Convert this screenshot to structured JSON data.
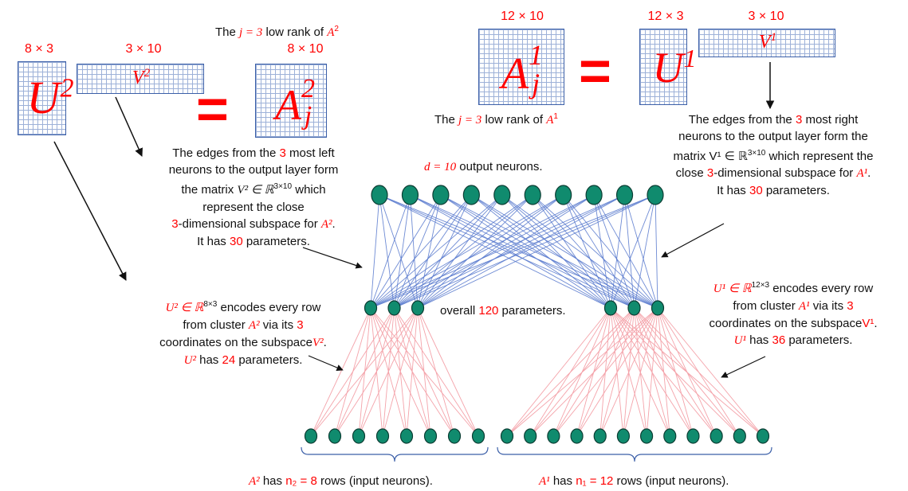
{
  "matrices": {
    "u2": {
      "dim": "8 × 3",
      "label": "U",
      "sup": "2"
    },
    "v2": {
      "dim": "3 × 10",
      "label": "V",
      "sup": "2"
    },
    "a2j": {
      "dim": "8 × 10",
      "label": "A",
      "sup": "2",
      "sub": "j"
    },
    "a1j": {
      "dim": "12 × 10",
      "label": "A",
      "sup": "1",
      "sub": "j"
    },
    "u1": {
      "dim": "12 × 3",
      "label": "U",
      "sup": "1"
    },
    "v1": {
      "dim": "3 × 10",
      "label": "V",
      "sup": "1"
    },
    "equals": "="
  },
  "low_rank_a2": {
    "pre": "The ",
    "j": "j = 3",
    "mid": " low rank of ",
    "a": "A",
    "sup": "2"
  },
  "low_rank_a1": {
    "pre": "The ",
    "j": "j = 3",
    "mid": " low rank of ",
    "a": "A",
    "sup": "1"
  },
  "left_edges_text": {
    "l1_pre": "The edges from the ",
    "l1_num": "3",
    "l1_post": " most left",
    "l2": "neurons to the output  layer form",
    "l3_pre": "the matrix ",
    "l3_m": "V² ∈ ℝ",
    "l3_sup": "3×10",
    "l3_post": " which",
    "l4": "represent the close",
    "l5_num": "3",
    "l5_post": "-dimensional subspace for ",
    "l5_m": "A²",
    "l5_end": ".",
    "l6_pre": "It has ",
    "l6_num": "30",
    "l6_post": " parameters."
  },
  "right_edges_text": {
    "l1_pre": "The edges from the ",
    "l1_num": "3",
    "l1_post": " most right",
    "l2": "neurons to the output  layer form the",
    "l3_pre": "matrix ",
    "l3_m": "V¹ ∈ ℝ",
    "l3_sup": "3×10",
    "l3_post": " which represent the",
    "l4_pre": "close ",
    "l4_num": "3",
    "l4_post": "-dimensional subspace for ",
    "l4_m": "A¹",
    "l4_end": ".",
    "l5_pre": "It has ",
    "l5_num": "30",
    "l5_post": " parameters."
  },
  "output_text": {
    "d": "d = 10",
    "rest": " output neurons."
  },
  "overall_text": {
    "pre": "overall ",
    "num": "120",
    "post": " parameters."
  },
  "u2_text": {
    "l1_m": "U² ∈ ℝ",
    "l1_sup": "8×3",
    "l1_post": " encodes every row",
    "l2_pre": "from cluster ",
    "l2_m": "A²",
    "l2_mid": " via its ",
    "l2_num": "3",
    "l3_pre": "coordinates on the subspace",
    "l3_m": "V²",
    "l3_end": ".",
    "l4_m": "U²",
    "l4_mid": " has ",
    "l4_num": "24",
    "l4_post": " parameters."
  },
  "u1_text": {
    "l1_m": "U¹ ∈ ℝ",
    "l1_sup": "12×3",
    "l1_post": " encodes every row",
    "l2_pre": "from cluster ",
    "l2_m": "A¹",
    "l2_mid": " via its ",
    "l2_num": "3",
    "l3_pre": "coordinates on the subspace",
    "l3_m": "V¹",
    "l3_end": ".",
    "l4_m": "U¹",
    "l4_mid": " has ",
    "l4_num": "36",
    "l4_post": " parameters."
  },
  "bottom_left": {
    "m": "A²",
    "pre": " has ",
    "n": "n₂ = 8",
    "post": " rows (input neurons)."
  },
  "bottom_right": {
    "m": "A¹",
    "pre": " has ",
    "n": "n₁ = 12",
    "post": " rows (input neurons)."
  },
  "network": {
    "output_neurons": 10,
    "hidden_left": 3,
    "hidden_right": 3,
    "input_left": 8,
    "input_right": 12,
    "colors": {
      "neuron": "#108b6e",
      "neuron_stroke": "#0c3d33",
      "edge_top": "#5577cc",
      "edge_bottom": "#f4a3aa",
      "accent": "#ff0000"
    }
  }
}
